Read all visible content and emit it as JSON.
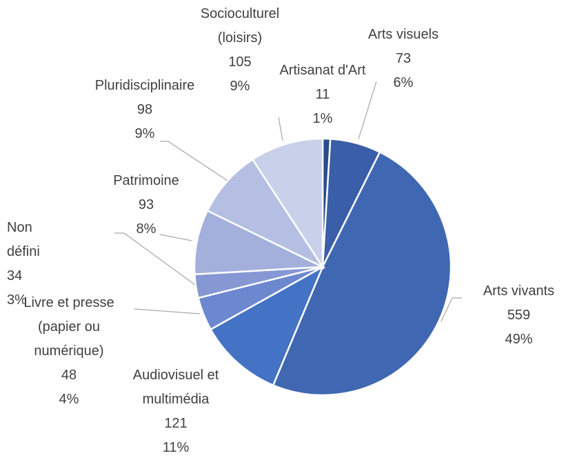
{
  "chart_data": {
    "type": "pie",
    "categories": [
      "Artisanat d'Art",
      "Arts visuels",
      "Arts vivants",
      "Audiovisuel et multimédia",
      "Livre et presse (papier ou numérique)",
      "Non défini",
      "Patrimoine",
      "Pluridisciplinaire",
      "Socioculturel (loisirs)"
    ],
    "values": [
      11,
      73,
      559,
      121,
      48,
      34,
      93,
      98,
      105
    ],
    "percent_labels": [
      "1%",
      "6%",
      "49%",
      "11%",
      "4%",
      "3%",
      "8%",
      "9%",
      "9%"
    ],
    "colors": [
      "#2b4c8c",
      "#3b5ea8",
      "#4068b2",
      "#4472c4",
      "#6c88cf",
      "#8598d3",
      "#a3b0dc",
      "#b5bfe3",
      "#c9d0ea"
    ]
  }
}
